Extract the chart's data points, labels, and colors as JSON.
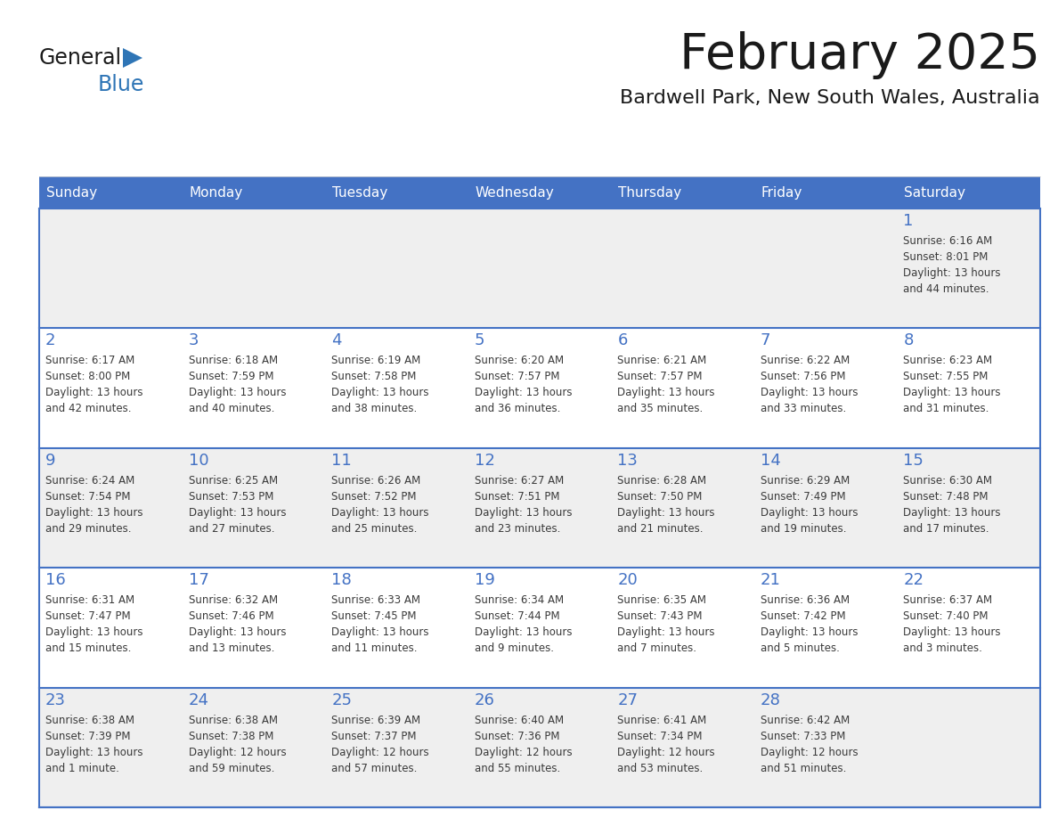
{
  "title": "February 2025",
  "subtitle": "Bardwell Park, New South Wales, Australia",
  "days_of_week": [
    "Sunday",
    "Monday",
    "Tuesday",
    "Wednesday",
    "Thursday",
    "Friday",
    "Saturday"
  ],
  "header_bg_color": "#4472C4",
  "header_text_color": "#FFFFFF",
  "cell_bg_color_odd": "#EFEFEF",
  "cell_bg_color_even": "#FFFFFF",
  "day_number_color": "#4472C4",
  "info_text_color": "#3a3a3a",
  "grid_color": "#4472C4",
  "logo_triangle_color": "#2E75B6",
  "logo_blue_color": "#2E75B6",
  "calendar_data": [
    [
      null,
      null,
      null,
      null,
      null,
      null,
      1
    ],
    [
      2,
      3,
      4,
      5,
      6,
      7,
      8
    ],
    [
      9,
      10,
      11,
      12,
      13,
      14,
      15
    ],
    [
      16,
      17,
      18,
      19,
      20,
      21,
      22
    ],
    [
      23,
      24,
      25,
      26,
      27,
      28,
      null
    ]
  ],
  "sunrise_data": {
    "1": "6:16 AM",
    "2": "6:17 AM",
    "3": "6:18 AM",
    "4": "6:19 AM",
    "5": "6:20 AM",
    "6": "6:21 AM",
    "7": "6:22 AM",
    "8": "6:23 AM",
    "9": "6:24 AM",
    "10": "6:25 AM",
    "11": "6:26 AM",
    "12": "6:27 AM",
    "13": "6:28 AM",
    "14": "6:29 AM",
    "15": "6:30 AM",
    "16": "6:31 AM",
    "17": "6:32 AM",
    "18": "6:33 AM",
    "19": "6:34 AM",
    "20": "6:35 AM",
    "21": "6:36 AM",
    "22": "6:37 AM",
    "23": "6:38 AM",
    "24": "6:38 AM",
    "25": "6:39 AM",
    "26": "6:40 AM",
    "27": "6:41 AM",
    "28": "6:42 AM"
  },
  "sunset_data": {
    "1": "8:01 PM",
    "2": "8:00 PM",
    "3": "7:59 PM",
    "4": "7:58 PM",
    "5": "7:57 PM",
    "6": "7:57 PM",
    "7": "7:56 PM",
    "8": "7:55 PM",
    "9": "7:54 PM",
    "10": "7:53 PM",
    "11": "7:52 PM",
    "12": "7:51 PM",
    "13": "7:50 PM",
    "14": "7:49 PM",
    "15": "7:48 PM",
    "16": "7:47 PM",
    "17": "7:46 PM",
    "18": "7:45 PM",
    "19": "7:44 PM",
    "20": "7:43 PM",
    "21": "7:42 PM",
    "22": "7:40 PM",
    "23": "7:39 PM",
    "24": "7:38 PM",
    "25": "7:37 PM",
    "26": "7:36 PM",
    "27": "7:34 PM",
    "28": "7:33 PM"
  },
  "daylight_data": {
    "1": [
      "13 hours",
      "and 44 minutes."
    ],
    "2": [
      "13 hours",
      "and 42 minutes."
    ],
    "3": [
      "13 hours",
      "and 40 minutes."
    ],
    "4": [
      "13 hours",
      "and 38 minutes."
    ],
    "5": [
      "13 hours",
      "and 36 minutes."
    ],
    "6": [
      "13 hours",
      "and 35 minutes."
    ],
    "7": [
      "13 hours",
      "and 33 minutes."
    ],
    "8": [
      "13 hours",
      "and 31 minutes."
    ],
    "9": [
      "13 hours",
      "and 29 minutes."
    ],
    "10": [
      "13 hours",
      "and 27 minutes."
    ],
    "11": [
      "13 hours",
      "and 25 minutes."
    ],
    "12": [
      "13 hours",
      "and 23 minutes."
    ],
    "13": [
      "13 hours",
      "and 21 minutes."
    ],
    "14": [
      "13 hours",
      "and 19 minutes."
    ],
    "15": [
      "13 hours",
      "and 17 minutes."
    ],
    "16": [
      "13 hours",
      "and 15 minutes."
    ],
    "17": [
      "13 hours",
      "and 13 minutes."
    ],
    "18": [
      "13 hours",
      "and 11 minutes."
    ],
    "19": [
      "13 hours",
      "and 9 minutes."
    ],
    "20": [
      "13 hours",
      "and 7 minutes."
    ],
    "21": [
      "13 hours",
      "and 5 minutes."
    ],
    "22": [
      "13 hours",
      "and 3 minutes."
    ],
    "23": [
      "13 hours",
      "and 1 minute."
    ],
    "24": [
      "12 hours",
      "and 59 minutes."
    ],
    "25": [
      "12 hours",
      "and 57 minutes."
    ],
    "26": [
      "12 hours",
      "and 55 minutes."
    ],
    "27": [
      "12 hours",
      "and 53 minutes."
    ],
    "28": [
      "12 hours",
      "and 51 minutes."
    ]
  }
}
